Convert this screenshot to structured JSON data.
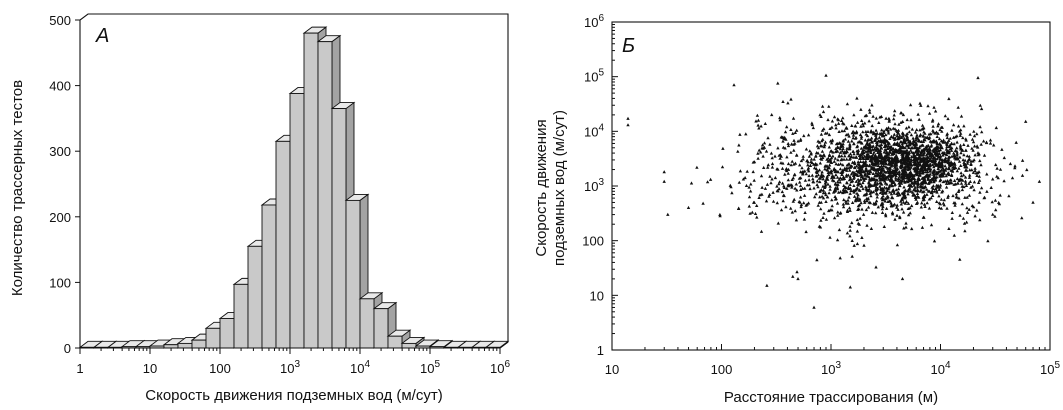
{
  "chart_data": [
    {
      "type": "bar",
      "panel_label": "А",
      "xlabel": "Скорость движения подземных вод (м/сут)",
      "ylabel": "Количество трассерных тестов",
      "x_scale": "log",
      "xlim": [
        1,
        1000000
      ],
      "ylim": [
        0,
        500
      ],
      "x_ticks": [
        {
          "value": 1,
          "mantissa": "1",
          "exponent": ""
        },
        {
          "value": 10,
          "mantissa": "10",
          "exponent": ""
        },
        {
          "value": 100,
          "mantissa": "100",
          "exponent": ""
        },
        {
          "value": 1000,
          "mantissa": "10",
          "exponent": "3"
        },
        {
          "value": 10000,
          "mantissa": "10",
          "exponent": "4"
        },
        {
          "value": 100000,
          "mantissa": "10",
          "exponent": "5"
        },
        {
          "value": 1000000,
          "mantissa": "10",
          "exponent": "6"
        }
      ],
      "y_ticks": [
        0,
        100,
        200,
        300,
        400,
        500
      ],
      "bin_width_log10": 0.2,
      "bins_log10_start": [
        0.0,
        0.2,
        0.4,
        0.6,
        0.8,
        1.0,
        1.2,
        1.4,
        1.6,
        1.8,
        2.0,
        2.2,
        2.4,
        2.6,
        2.8,
        3.0,
        3.2,
        3.4,
        3.6,
        3.8,
        4.0,
        4.2,
        4.4,
        4.6,
        4.8,
        5.0,
        5.2,
        5.4,
        5.6,
        5.8
      ],
      "values": [
        1,
        1,
        1,
        2,
        2,
        3,
        5,
        7,
        12,
        30,
        45,
        97,
        155,
        218,
        315,
        388,
        480,
        467,
        365,
        225,
        75,
        60,
        18,
        7,
        3,
        2,
        1,
        1,
        1,
        1
      ],
      "colors": {
        "bar_front": "#c9c9c9",
        "bar_top": "#e9e9e9",
        "bar_side": "#a3a3a3"
      }
    },
    {
      "type": "scatter",
      "panel_label": "Б",
      "xlabel": "Расстояние трассирования (м)",
      "ylabel_line1": "Скорость движения",
      "ylabel_line2": "подземных вод (м/сут)",
      "x_scale": "log",
      "y_scale": "log",
      "xlim": [
        10,
        100000
      ],
      "ylim": [
        1,
        1000000
      ],
      "x_ticks": [
        {
          "value": 10,
          "mantissa": "10",
          "exponent": ""
        },
        {
          "value": 100,
          "mantissa": "100",
          "exponent": ""
        },
        {
          "value": 1000,
          "mantissa": "10",
          "exponent": "3"
        },
        {
          "value": 10000,
          "mantissa": "10",
          "exponent": "4"
        },
        {
          "value": 100000,
          "mantissa": "10",
          "exponent": "5"
        }
      ],
      "y_ticks": [
        {
          "value": 1,
          "mantissa": "1",
          "exponent": ""
        },
        {
          "value": 10,
          "mantissa": "10",
          "exponent": ""
        },
        {
          "value": 100,
          "mantissa": "100",
          "exponent": ""
        },
        {
          "value": 1000,
          "mantissa": "10",
          "exponent": "3"
        },
        {
          "value": 10000,
          "mantissa": "10",
          "exponent": "4"
        },
        {
          "value": 100000,
          "mantissa": "10",
          "exponent": "5"
        },
        {
          "value": 1000000,
          "mantissa": "10",
          "exponent": "6"
        }
      ],
      "marker": "triangle",
      "point_cloud": {
        "count": 2600,
        "log10_distance_mean": 3.35,
        "log10_distance_sd": 0.55,
        "log10_velocity_mean": 3.3,
        "log10_velocity_sd": 0.5,
        "log10_distance_range": [
          1.1,
          4.9
        ],
        "log10_velocity_range": [
          0.7,
          5.1
        ],
        "dense_core_log10_distance": 3.7,
        "dense_core_log10_velocity": 3.4
      },
      "points": [
        {
          "x": 14,
          "y": 17000
        },
        {
          "x": 14,
          "y": 13000
        },
        {
          "x": 700,
          "y": 6
        },
        {
          "x": 260,
          "y": 15
        },
        {
          "x": 1500,
          "y": 14
        },
        {
          "x": 22000,
          "y": 95000
        },
        {
          "x": 900,
          "y": 105000
        },
        {
          "x": 30,
          "y": 1800
        },
        {
          "x": 30,
          "y": 1200
        },
        {
          "x": 50,
          "y": 400
        },
        {
          "x": 60000,
          "y": 15000
        },
        {
          "x": 80000,
          "y": 1200
        },
        {
          "x": 70000,
          "y": 500
        },
        {
          "x": 15000,
          "y": 45
        },
        {
          "x": 130,
          "y": 70000
        },
        {
          "x": 30000,
          "y": 300
        },
        {
          "x": 500,
          "y": 20
        },
        {
          "x": 4500,
          "y": 20
        }
      ]
    }
  ]
}
